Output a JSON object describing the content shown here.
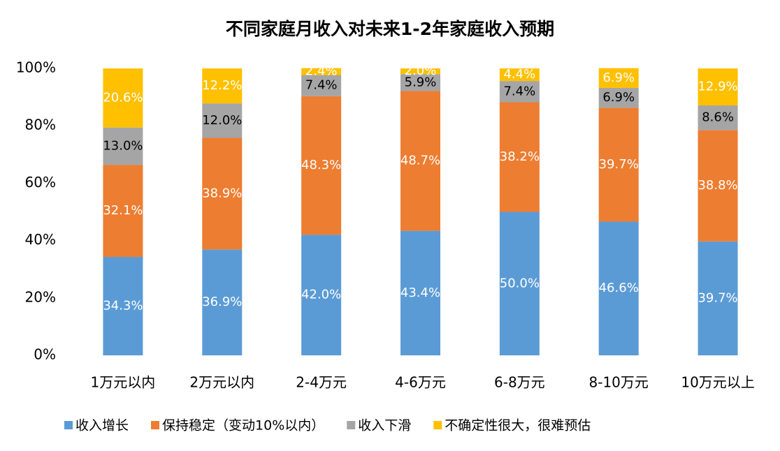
{
  "chart_data": {
    "type": "stacked_bar",
    "title": "不同家庭月收入对未来1-2年家庭收入预期",
    "categories": [
      "1万元以内",
      "2万元以内",
      "2-4万元",
      "4-6万元",
      "6-8万元",
      "8-10万元",
      "10万元以上"
    ],
    "series": [
      {
        "name": "收入增长",
        "color": "#5B9BD5",
        "label_color": "#ffffff",
        "values": [
          34.3,
          36.9,
          42.0,
          43.4,
          50.0,
          46.6,
          39.7
        ],
        "value_labels": [
          "34.3%",
          "36.9%",
          "42.0%",
          "43.4%",
          "50.0%",
          "46.6%",
          "39.7%"
        ]
      },
      {
        "name": "保持稳定（变动10%以内）",
        "color": "#ED7D31",
        "label_color": "#ffffff",
        "values": [
          32.1,
          38.9,
          48.3,
          48.7,
          38.2,
          39.7,
          38.8
        ],
        "value_labels": [
          "32.1%",
          "38.9%",
          "48.3%",
          "48.7%",
          "38.2%",
          "39.7%",
          "38.8%"
        ]
      },
      {
        "name": "收入下滑",
        "color": "#A5A5A5",
        "label_color": "#000000",
        "values": [
          13.0,
          12.0,
          7.4,
          5.9,
          7.4,
          6.9,
          8.6
        ],
        "value_labels": [
          "13.0%",
          "12.0%",
          "7.4%",
          "5.9%",
          "7.4%",
          "6.9%",
          "8.6%"
        ]
      },
      {
        "name": "不确定性很大，很难预估",
        "color": "#FFC000",
        "label_color": "#ffffff",
        "values": [
          20.6,
          12.2,
          2.4,
          2.0,
          4.4,
          6.9,
          12.9
        ],
        "value_labels": [
          "20.6%",
          "12.2%",
          "2.4%",
          "2.0%",
          "4.4%",
          "6.9%",
          "12.9%"
        ]
      }
    ],
    "ylim": [
      0,
      100
    ],
    "yticks": [
      {
        "value": 0,
        "label": "0%"
      },
      {
        "value": 20,
        "label": "20%"
      },
      {
        "value": 40,
        "label": "40%"
      },
      {
        "value": 60,
        "label": "60%"
      },
      {
        "value": 80,
        "label": "80%"
      },
      {
        "value": 100,
        "label": "100%"
      }
    ],
    "grid": false,
    "legend": "bottom"
  }
}
